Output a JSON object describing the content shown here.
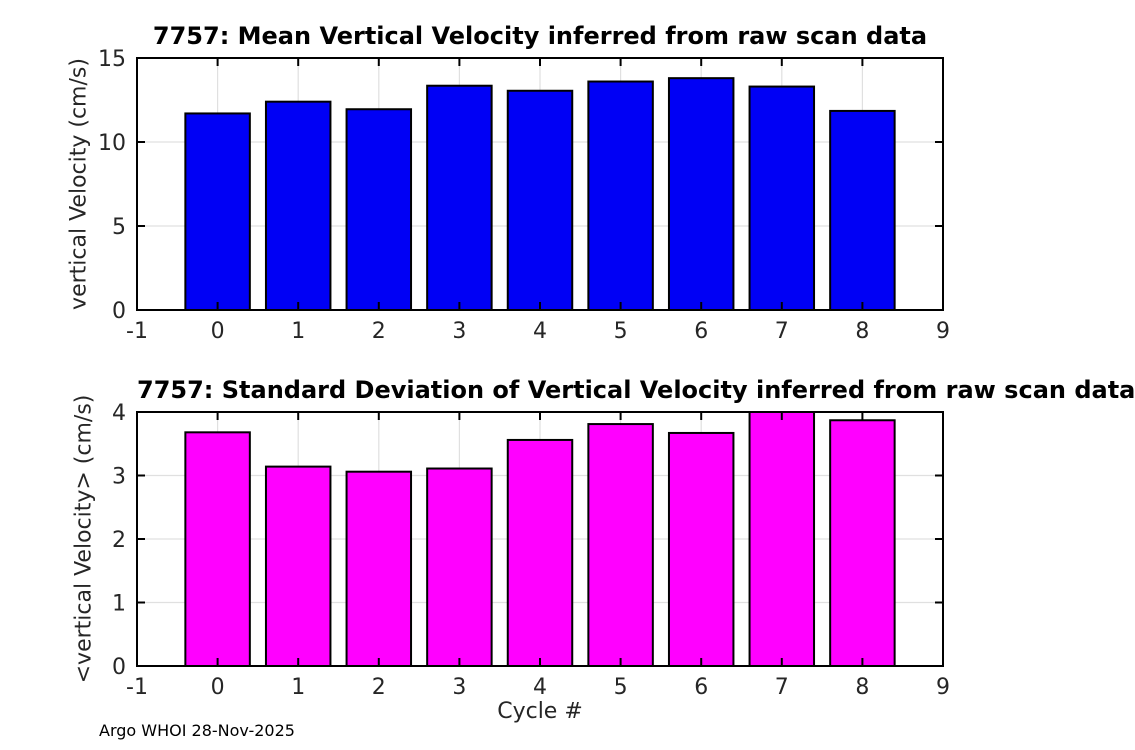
{
  "figure": {
    "background": "#ffffff",
    "footer": "Argo WHOI 28-Nov-2025"
  },
  "style": {
    "axis_color": "#000000",
    "grid_color": "#e0e0e0",
    "tick_label_color": "#262626"
  },
  "chart_data": [
    {
      "type": "bar",
      "title": "7757: Mean Vertical Velocity inferred from raw scan data",
      "xlabel": "",
      "ylabel": "vertical Velocity (cm/s)",
      "x": [
        0,
        1,
        2,
        3,
        4,
        5,
        6,
        7,
        8
      ],
      "values": [
        11.7,
        12.4,
        11.95,
        13.35,
        13.05,
        13.6,
        13.8,
        13.3,
        11.85
      ],
      "xlim": [
        -1,
        9
      ],
      "ylim": [
        0,
        15
      ],
      "xticks": [
        -1,
        0,
        1,
        2,
        3,
        4,
        5,
        6,
        7,
        8,
        9
      ],
      "yticks": [
        0,
        5,
        10,
        15
      ],
      "bar_width": 0.8,
      "bar_color": "#0000f5",
      "grid": true,
      "legend": "none"
    },
    {
      "type": "bar",
      "title": "7757: Standard Deviation of Vertical Velocity inferred from raw scan data",
      "xlabel": "Cycle #",
      "ylabel": "<vertical Velocity> (cm/s)",
      "x": [
        0,
        1,
        2,
        3,
        4,
        5,
        6,
        7,
        8
      ],
      "values": [
        3.68,
        3.14,
        3.06,
        3.11,
        3.56,
        3.81,
        3.67,
        4.0,
        3.87
      ],
      "xlim": [
        -1,
        9
      ],
      "ylim": [
        0,
        4
      ],
      "xticks": [
        -1,
        0,
        1,
        2,
        3,
        4,
        5,
        6,
        7,
        8,
        9
      ],
      "yticks": [
        0,
        1,
        2,
        3,
        4
      ],
      "bar_width": 0.8,
      "bar_color": "#ff00ff",
      "grid": true,
      "legend": "none"
    }
  ]
}
